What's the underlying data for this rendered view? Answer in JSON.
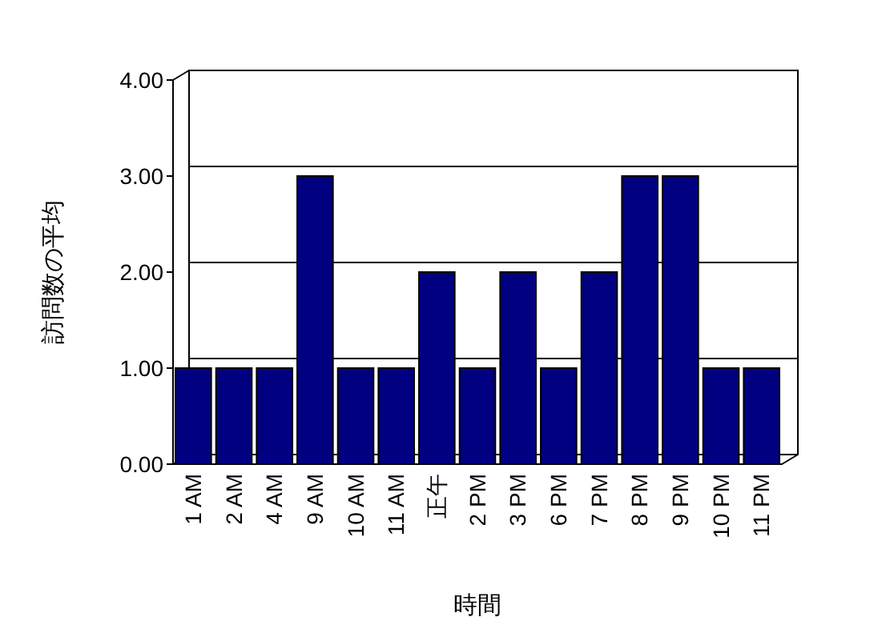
{
  "chart_data": {
    "type": "bar",
    "xlabel": "時間",
    "ylabel": "訪問数の平均",
    "categories": [
      "1 AM",
      "2 AM",
      "4 AM",
      "9 AM",
      "10 AM",
      "11 AM",
      "正午",
      "2 PM",
      "3 PM",
      "6 PM",
      "7 PM",
      "8 PM",
      "9 PM",
      "10 PM",
      "11 PM"
    ],
    "values": [
      1,
      1,
      1,
      3,
      1,
      1,
      2,
      1,
      2,
      1,
      2,
      3,
      3,
      1,
      1
    ],
    "color": "#000080",
    "ylim": [
      0,
      4
    ],
    "yticks": [
      {
        "value": 0,
        "label": "0.00"
      },
      {
        "value": 1,
        "label": "1.00"
      },
      {
        "value": 2,
        "label": "2.00"
      },
      {
        "value": 3,
        "label": "3.00"
      },
      {
        "value": 4,
        "label": "4.00"
      }
    ],
    "grid": "y"
  }
}
